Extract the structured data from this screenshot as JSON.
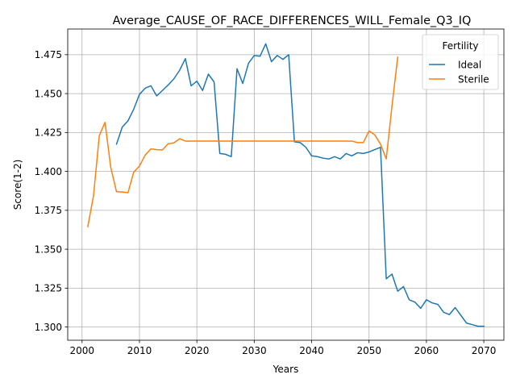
{
  "chart_data": {
    "type": "line",
    "title": "Average_CAUSE_OF_RACE_DIFFERENCES_WILL_Female_Q3_IQ",
    "xlabel": "Years",
    "ylabel": "Score(1-2)",
    "xlim": [
      1997.5,
      2073.5
    ],
    "ylim": [
      1.2915,
      1.4915
    ],
    "xticks": [
      2000,
      2010,
      2020,
      2030,
      2040,
      2050,
      2060,
      2070
    ],
    "yticks": [
      1.3,
      1.325,
      1.35,
      1.375,
      1.4,
      1.425,
      1.45,
      1.475
    ],
    "ytick_labels": [
      "1.300",
      "1.325",
      "1.350",
      "1.375",
      "1.400",
      "1.425",
      "1.450",
      "1.475"
    ],
    "grid": true,
    "legend": {
      "title": "Fertility",
      "placement": "top-right"
    },
    "series": [
      {
        "name": "Ideal",
        "color": "#1f77b4",
        "x": [
          2006,
          2007,
          2008,
          2009,
          2010,
          2011,
          2012,
          2013,
          2014,
          2015,
          2016,
          2017,
          2018,
          2019,
          2020,
          2021,
          2022,
          2023,
          2024,
          2025,
          2026,
          2027,
          2028,
          2029,
          2030,
          2031,
          2032,
          2033,
          2034,
          2035,
          2036,
          2037,
          2038,
          2039,
          2040,
          2041,
          2042,
          2043,
          2044,
          2045,
          2046,
          2047,
          2048,
          2049,
          2050,
          2051,
          2052,
          2053,
          2054,
          2055,
          2056,
          2057,
          2058,
          2059,
          2060,
          2061,
          2062,
          2063,
          2064,
          2065,
          2066,
          2067,
          2068,
          2069,
          2070
        ],
        "values": [
          1.4175,
          1.4285,
          1.4325,
          1.44,
          1.4495,
          1.4535,
          1.455,
          1.4485,
          1.452,
          1.4555,
          1.4595,
          1.465,
          1.4725,
          1.455,
          1.458,
          1.452,
          1.4625,
          1.4575,
          1.4115,
          1.411,
          1.4095,
          1.466,
          1.4565,
          1.4695,
          1.4745,
          1.474,
          1.482,
          1.4705,
          1.4745,
          1.472,
          1.475,
          1.419,
          1.4185,
          1.4155,
          1.41,
          1.4095,
          1.4085,
          1.408,
          1.4095,
          1.408,
          1.4115,
          1.41,
          1.412,
          1.4115,
          1.4125,
          1.414,
          1.4155,
          1.331,
          1.334,
          1.323,
          1.326,
          1.3175,
          1.316,
          1.312,
          1.3175,
          1.3155,
          1.3145,
          1.3095,
          1.308,
          1.3125,
          1.3075,
          1.3025,
          1.3015,
          1.3005,
          1.3005
        ]
      },
      {
        "name": "Sterile",
        "color": "#ff7f0e",
        "x": [
          2001,
          2002,
          2003,
          2004,
          2005,
          2006,
          2007,
          2008,
          2009,
          2010,
          2011,
          2012,
          2013,
          2014,
          2015,
          2016,
          2017,
          2018,
          2019,
          2020,
          2021,
          2022,
          2023,
          2024,
          2025,
          2026,
          2027,
          2028,
          2029,
          2030,
          2031,
          2032,
          2033,
          2034,
          2035,
          2036,
          2037,
          2038,
          2039,
          2040,
          2041,
          2042,
          2043,
          2044,
          2045,
          2046,
          2047,
          2048,
          2049,
          2050,
          2051,
          2052,
          2053,
          2054,
          2055
        ],
        "values": [
          1.3645,
          1.3845,
          1.423,
          1.4315,
          1.4025,
          1.387,
          1.3868,
          1.3863,
          1.3995,
          1.4035,
          1.4105,
          1.4145,
          1.414,
          1.4138,
          1.4178,
          1.4183,
          1.421,
          1.4195,
          1.4195,
          1.4195,
          1.4195,
          1.4195,
          1.4195,
          1.4195,
          1.4195,
          1.4195,
          1.4195,
          1.4195,
          1.4195,
          1.4195,
          1.4195,
          1.4195,
          1.4195,
          1.4195,
          1.4195,
          1.4195,
          1.4195,
          1.4195,
          1.4195,
          1.4195,
          1.4195,
          1.4195,
          1.4195,
          1.4195,
          1.4195,
          1.4195,
          1.4195,
          1.4185,
          1.4185,
          1.426,
          1.4235,
          1.4175,
          1.408,
          1.442,
          1.4735
        ]
      }
    ]
  }
}
